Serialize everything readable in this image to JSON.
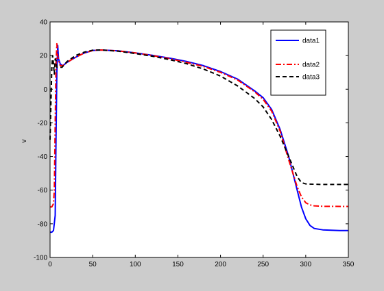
{
  "chart_data": {
    "type": "line",
    "title": "",
    "xlabel": "",
    "ylabel": "v",
    "xlim": [
      0,
      350
    ],
    "ylim": [
      -100,
      40
    ],
    "xticks": [
      0,
      50,
      100,
      150,
      200,
      250,
      300,
      350
    ],
    "yticks": [
      -100,
      -80,
      -60,
      -40,
      -20,
      0,
      20,
      40
    ],
    "grid": false,
    "legend_position": "top-right",
    "series": [
      {
        "name": "data1",
        "color": "#0000ff",
        "dash": "solid",
        "points": [
          [
            0,
            -85
          ],
          [
            2,
            -85
          ],
          [
            4,
            -84
          ],
          [
            6,
            -75
          ],
          [
            7,
            -30
          ],
          [
            8,
            10
          ],
          [
            9,
            26
          ],
          [
            10,
            18
          ],
          [
            12,
            15
          ],
          [
            15,
            14
          ],
          [
            20,
            16
          ],
          [
            30,
            19
          ],
          [
            40,
            21.5
          ],
          [
            50,
            23
          ],
          [
            60,
            23.3
          ],
          [
            80,
            22.8
          ],
          [
            100,
            21.6
          ],
          [
            120,
            20.2
          ],
          [
            140,
            18.5
          ],
          [
            160,
            16.5
          ],
          [
            180,
            14
          ],
          [
            200,
            10.5
          ],
          [
            220,
            6
          ],
          [
            240,
            -1
          ],
          [
            250,
            -5
          ],
          [
            260,
            -12
          ],
          [
            270,
            -24
          ],
          [
            280,
            -40
          ],
          [
            290,
            -60
          ],
          [
            295,
            -70
          ],
          [
            300,
            -77
          ],
          [
            305,
            -81
          ],
          [
            310,
            -82.8
          ],
          [
            320,
            -83.6
          ],
          [
            330,
            -83.8
          ],
          [
            340,
            -84
          ],
          [
            350,
            -84
          ]
        ]
      },
      {
        "name": "data2",
        "color": "#ff0000",
        "dash": "dashdot",
        "points": [
          [
            0,
            -70
          ],
          [
            2,
            -70
          ],
          [
            4,
            -68
          ],
          [
            5,
            -60
          ],
          [
            6,
            -20
          ],
          [
            7,
            15
          ],
          [
            8,
            27
          ],
          [
            9,
            20
          ],
          [
            10,
            17
          ],
          [
            12,
            14
          ],
          [
            15,
            14
          ],
          [
            20,
            16
          ],
          [
            30,
            19
          ],
          [
            40,
            21.5
          ],
          [
            50,
            23
          ],
          [
            60,
            23.3
          ],
          [
            80,
            22.8
          ],
          [
            100,
            21.6
          ],
          [
            120,
            20
          ],
          [
            140,
            18.2
          ],
          [
            160,
            16
          ],
          [
            180,
            13.5
          ],
          [
            200,
            10
          ],
          [
            220,
            5.5
          ],
          [
            240,
            -1.5
          ],
          [
            250,
            -6
          ],
          [
            260,
            -13
          ],
          [
            270,
            -25
          ],
          [
            280,
            -42
          ],
          [
            290,
            -58
          ],
          [
            295,
            -64
          ],
          [
            300,
            -67.5
          ],
          [
            305,
            -68.8
          ],
          [
            310,
            -69.3
          ],
          [
            320,
            -69.6
          ],
          [
            350,
            -69.7
          ]
        ]
      },
      {
        "name": "data3",
        "color": "#000000",
        "dash": "dashed",
        "points": [
          [
            0,
            -30
          ],
          [
            1,
            -10
          ],
          [
            2,
            12
          ],
          [
            3,
            20
          ],
          [
            4,
            15
          ],
          [
            5,
            9
          ],
          [
            6,
            18
          ],
          [
            7,
            17
          ],
          [
            8,
            13
          ],
          [
            10,
            13
          ],
          [
            14,
            13
          ],
          [
            20,
            16.5
          ],
          [
            30,
            20
          ],
          [
            40,
            22
          ],
          [
            50,
            23.2
          ],
          [
            60,
            23.3
          ],
          [
            80,
            22.6
          ],
          [
            100,
            21.2
          ],
          [
            120,
            19.6
          ],
          [
            140,
            17.6
          ],
          [
            160,
            15.2
          ],
          [
            180,
            12
          ],
          [
            200,
            7.8
          ],
          [
            220,
            2
          ],
          [
            240,
            -5.5
          ],
          [
            250,
            -10.5
          ],
          [
            260,
            -18
          ],
          [
            270,
            -28
          ],
          [
            280,
            -40
          ],
          [
            290,
            -52
          ],
          [
            295,
            -55.5
          ],
          [
            300,
            -56.3
          ],
          [
            310,
            -56.5
          ],
          [
            320,
            -56.6
          ],
          [
            350,
            -56.6
          ]
        ]
      }
    ]
  }
}
